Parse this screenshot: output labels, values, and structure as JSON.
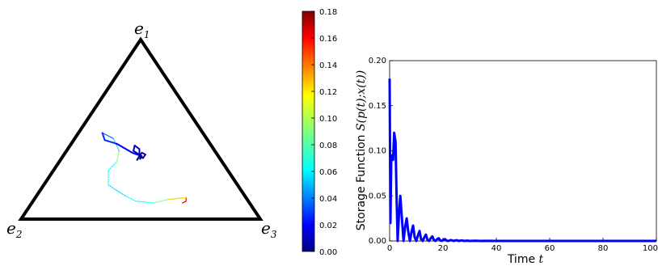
{
  "chart_data": [
    {
      "type": "simplex-trajectory",
      "vertex_labels": [
        {
          "base": "e",
          "sub": "1"
        },
        {
          "base": "e",
          "sub": "2"
        },
        {
          "base": "e",
          "sub": "3"
        }
      ],
      "trajectory_barycentric": [
        [
          0.09,
          0.28,
          0.63
        ],
        [
          0.1,
          0.26,
          0.64
        ],
        [
          0.12,
          0.25,
          0.63
        ],
        [
          0.11,
          0.33,
          0.56
        ],
        [
          0.09,
          0.4,
          0.51
        ],
        [
          0.1,
          0.47,
          0.43
        ],
        [
          0.13,
          0.5,
          0.37
        ],
        [
          0.19,
          0.54,
          0.27
        ],
        [
          0.27,
          0.5,
          0.23
        ],
        [
          0.32,
          0.44,
          0.24
        ],
        [
          0.38,
          0.4,
          0.22
        ],
        [
          0.45,
          0.39,
          0.16
        ],
        [
          0.48,
          0.42,
          0.1
        ],
        [
          0.44,
          0.43,
          0.13
        ],
        [
          0.42,
          0.39,
          0.19
        ],
        [
          0.37,
          0.35,
          0.28
        ],
        [
          0.35,
          0.32,
          0.33
        ],
        [
          0.38,
          0.34,
          0.28
        ],
        [
          0.41,
          0.32,
          0.27
        ],
        [
          0.39,
          0.31,
          0.3
        ],
        [
          0.35,
          0.33,
          0.32
        ],
        [
          0.33,
          0.35,
          0.32
        ],
        [
          0.37,
          0.31,
          0.32
        ],
        [
          0.36,
          0.3,
          0.34
        ],
        [
          0.34,
          0.32,
          0.34
        ],
        [
          0.35,
          0.33,
          0.32
        ],
        [
          0.34,
          0.33,
          0.33
        ],
        [
          0.335,
          0.335,
          0.33
        ]
      ],
      "trajectory_color_values": [
        0.17,
        0.16,
        0.12,
        0.09,
        0.07,
        0.07,
        0.06,
        0.07,
        0.07,
        0.09,
        0.06,
        0.04,
        0.03,
        0.03,
        0.02,
        0.02,
        0.01,
        0.01,
        0.01,
        0.01,
        0.005,
        0.005,
        0.005,
        0.005,
        0.003,
        0.002,
        0.001,
        0.0
      ],
      "colorbar": {
        "range": [
          0.0,
          0.18
        ],
        "ticks": [
          "0.00",
          "0.02",
          "0.04",
          "0.06",
          "0.08",
          "0.10",
          "0.12",
          "0.14",
          "0.16",
          "0.18"
        ],
        "colormap": "jet"
      }
    },
    {
      "type": "line",
      "xlabel": "Time t",
      "ylabel": "Storage Function S(p(t);x(t))",
      "xlim": [
        0,
        100
      ],
      "ylim": [
        0.0,
        0.2
      ],
      "xticks": [
        "0",
        "20",
        "40",
        "60",
        "80",
        "100"
      ],
      "yticks": [
        "0.00",
        "0.05",
        "0.10",
        "0.15",
        "0.20"
      ],
      "series_color": "#0000ff",
      "series": [
        {
          "x": [
            0,
            0.3,
            0.6,
            0.9,
            1.3,
            1.7,
            2.2,
            2.6,
            3.0,
            3.5,
            4.0,
            4.6,
            5.2,
            5.8,
            6.4,
            7.0,
            7.6,
            8.2,
            8.8,
            9.4,
            10.0,
            10.6,
            11.2,
            11.8,
            12.4,
            13.0,
            13.6,
            14.2,
            14.8,
            15.4,
            16.0,
            16.6,
            17.2,
            17.8,
            18.4,
            19.0,
            19.6,
            20.2,
            20.8,
            21.4,
            22.0,
            23.0,
            24.0,
            25.0,
            26.0,
            27.0,
            28.0,
            29.0,
            30.0,
            32.0,
            34.0,
            36.0,
            40.0,
            50.0,
            60.0,
            70.0,
            80.0,
            90.0,
            100.0
          ],
          "y": [
            0.18,
            0.02,
            0.09,
            0.095,
            0.09,
            0.12,
            0.11,
            0.05,
            0.0,
            0.03,
            0.05,
            0.025,
            0.0,
            0.015,
            0.025,
            0.01,
            0.0,
            0.01,
            0.017,
            0.004,
            0.0,
            0.006,
            0.011,
            0.002,
            0.0,
            0.004,
            0.007,
            0.001,
            0.0,
            0.003,
            0.005,
            0.001,
            0.0,
            0.002,
            0.003,
            0.0005,
            0.0,
            0.0015,
            0.002,
            0.0003,
            0.0,
            0.001,
            0.0,
            0.0008,
            0.0,
            0.0006,
            0.0,
            0.0004,
            0.0,
            0.0002,
            0.0,
            0.0001,
            0.0,
            0.0,
            0.0,
            0.0,
            0.0,
            0.0,
            0.0
          ]
        }
      ]
    }
  ]
}
